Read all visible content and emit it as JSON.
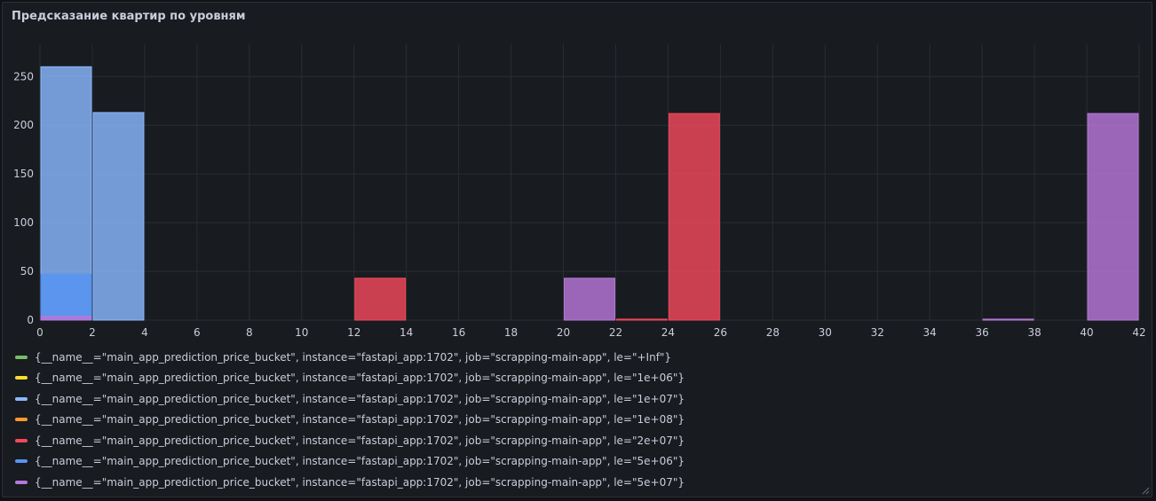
{
  "panel": {
    "title": "Предсказание квартир по уровням"
  },
  "chart_data": {
    "type": "bar",
    "subtype": "histogram",
    "xlim": [
      0,
      42
    ],
    "ylim": [
      0,
      280
    ],
    "xticks": [
      "0",
      "2",
      "4",
      "6",
      "8",
      "10",
      "12",
      "14",
      "16",
      "18",
      "20",
      "22",
      "24",
      "26",
      "28",
      "30",
      "32",
      "34",
      "36",
      "38",
      "40",
      "42"
    ],
    "yticks": [
      "0",
      "50",
      "100",
      "150",
      "200",
      "250"
    ],
    "grid": true,
    "legend_position": "bottom",
    "bars": [
      {
        "x0": 0,
        "x1": 2,
        "value": 260,
        "series": "1e+07"
      },
      {
        "x0": 0,
        "x1": 2,
        "value": 47,
        "series": "5e+06"
      },
      {
        "x0": 0,
        "x1": 2,
        "value": 4,
        "series": "5e+07"
      },
      {
        "x0": 2,
        "x1": 4,
        "value": 213,
        "series": "1e+07"
      },
      {
        "x0": 12,
        "x1": 14,
        "value": 43,
        "series": "2e+07"
      },
      {
        "x0": 20,
        "x1": 22,
        "value": 43,
        "series": "5e+07"
      },
      {
        "x0": 22,
        "x1": 24,
        "value": 1,
        "series": "2e+07"
      },
      {
        "x0": 24,
        "x1": 26,
        "value": 212,
        "series": "2e+07"
      },
      {
        "x0": 36,
        "x1": 38,
        "value": 1,
        "series": "5e+07"
      },
      {
        "x0": 40,
        "x1": 42,
        "value": 212,
        "series": "5e+07"
      }
    ],
    "series": [
      {
        "name": "{__name__=\"main_app_prediction_price_bucket\", instance=\"fastapi_app:1702\", job=\"scrapping-main-app\", le=\"+Inf\"}",
        "key": "+Inf",
        "color": "#73bf69"
      },
      {
        "name": "{__name__=\"main_app_prediction_price_bucket\", instance=\"fastapi_app:1702\", job=\"scrapping-main-app\", le=\"1e+06\"}",
        "key": "1e+06",
        "color": "#fade2a"
      },
      {
        "name": "{__name__=\"main_app_prediction_price_bucket\", instance=\"fastapi_app:1702\", job=\"scrapping-main-app\", le=\"1e+07\"}",
        "key": "1e+07",
        "color": "#8ab8ff"
      },
      {
        "name": "{__name__=\"main_app_prediction_price_bucket\", instance=\"fastapi_app:1702\", job=\"scrapping-main-app\", le=\"1e+08\"}",
        "key": "1e+08",
        "color": "#ff9830"
      },
      {
        "name": "{__name__=\"main_app_prediction_price_bucket\", instance=\"fastapi_app:1702\", job=\"scrapping-main-app\", le=\"2e+07\"}",
        "key": "2e+07",
        "color": "#f2495c"
      },
      {
        "name": "{__name__=\"main_app_prediction_price_bucket\", instance=\"fastapi_app:1702\", job=\"scrapping-main-app\", le=\"5e+06\"}",
        "key": "5e+06",
        "color": "#5794f2"
      },
      {
        "name": "{__name__=\"main_app_prediction_price_bucket\", instance=\"fastapi_app:1702\", job=\"scrapping-main-app\", le=\"5e+07\"}",
        "key": "5e+07",
        "color": "#b877d9"
      }
    ]
  }
}
